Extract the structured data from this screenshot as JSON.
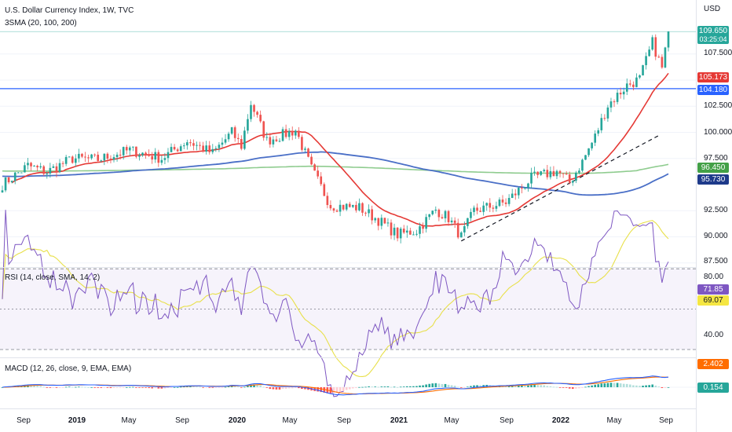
{
  "header": {
    "title": "U.S. Dollar Currency Index, 1W, TVC",
    "indicator": "3SMA (20, 100, 200)",
    "currency": "USD"
  },
  "price_axis": {
    "ticks": [
      "107.500",
      "102.500",
      "100.000",
      "97.500",
      "92.500",
      "90.000",
      "87.500"
    ],
    "last_price": "109.650",
    "countdown": "03:25:04",
    "sma20": "105.173",
    "level_line": "104.180",
    "sma200": "96.450",
    "sma100": "95.730"
  },
  "rsi": {
    "title": "RSI (14, close, SMA, 14, 2)",
    "ticks": [
      "80.00",
      "40.00"
    ],
    "value": "71.85",
    "sma_value": "69.07"
  },
  "macd": {
    "title": "MACD (12, 26, close, 9, EMA, EMA)",
    "macd_value": "2.402",
    "hist_value": "0.154"
  },
  "time_axis": [
    {
      "label": "Sep",
      "bold": false
    },
    {
      "label": "2019",
      "bold": true
    },
    {
      "label": "May",
      "bold": false
    },
    {
      "label": "Sep",
      "bold": false
    },
    {
      "label": "2020",
      "bold": true
    },
    {
      "label": "May",
      "bold": false
    },
    {
      "label": "Sep",
      "bold": false
    },
    {
      "label": "2021",
      "bold": true
    },
    {
      "label": "May",
      "bold": false
    },
    {
      "label": "Sep",
      "bold": false
    },
    {
      "label": "2022",
      "bold": true
    },
    {
      "label": "May",
      "bold": false
    },
    {
      "label": "Sep",
      "bold": false
    }
  ],
  "colors": {
    "up": "#26a69a",
    "down": "#ef5350",
    "sma20": "#e53935",
    "sma100": "#4a6fc7",
    "sma200": "#8fcc8f",
    "level": "#2962ff",
    "rsi": "#7e57c2",
    "rsi_sma": "#e8e04a",
    "macd": "#2962ff",
    "signal": "#ff6d00"
  },
  "chart_data": {
    "type": "candlestick",
    "timeframe": "1W",
    "weeks": 210,
    "start": "2018-09",
    "anchors": [
      [
        0,
        95.0
      ],
      [
        8,
        96.8
      ],
      [
        14,
        96.2
      ],
      [
        22,
        97.5
      ],
      [
        30,
        97.4
      ],
      [
        40,
        98.3
      ],
      [
        50,
        97.5
      ],
      [
        58,
        99.2
      ],
      [
        66,
        98.0
      ],
      [
        72,
        100.0
      ],
      [
        75,
        98.7
      ],
      [
        78,
        102.8
      ],
      [
        83,
        99.2
      ],
      [
        92,
        100.2
      ],
      [
        97,
        96.5
      ],
      [
        103,
        93.0
      ],
      [
        112,
        92.8
      ],
      [
        118,
        91.6
      ],
      [
        124,
        90.2
      ],
      [
        130,
        90.6
      ],
      [
        136,
        92.6
      ],
      [
        140,
        91.8
      ],
      [
        144,
        90.0
      ],
      [
        148,
        92.5
      ],
      [
        158,
        93.3
      ],
      [
        166,
        95.6
      ],
      [
        174,
        96.3
      ],
      [
        178,
        95.2
      ],
      [
        182,
        97.2
      ],
      [
        186,
        99.6
      ],
      [
        190,
        102.6
      ],
      [
        196,
        104.5
      ],
      [
        200,
        105.1
      ],
      [
        204,
        108.6
      ],
      [
        207,
        106.1
      ],
      [
        209,
        109.65
      ]
    ],
    "level_line": 104.18,
    "dashed_trendline": [
      [
        144,
        89.6
      ],
      [
        206,
        99.7
      ]
    ],
    "price_range": [
      87.5,
      110.5
    ]
  }
}
